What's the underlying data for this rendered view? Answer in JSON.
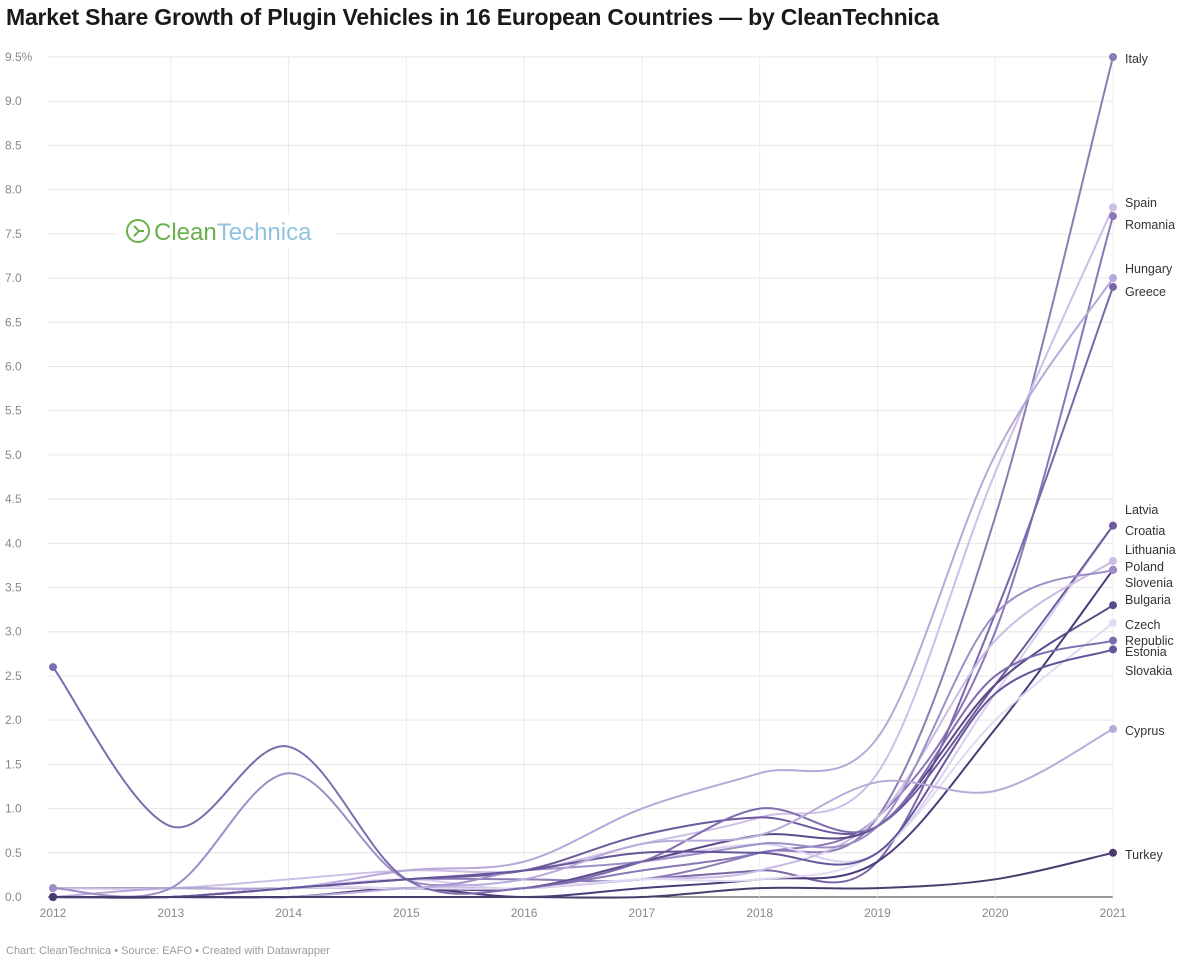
{
  "title": "Market Share Growth of Plugin Vehicles in 16 European Countries — by CleanTechnica",
  "footer": "Chart: CleanTechnica • Source: EAFO • Created with Datawrapper",
  "logo_text": {
    "part1": "Clean",
    "part2": "Technica"
  },
  "chart_data": {
    "type": "line",
    "title": "Market Share Growth of Plugin Vehicles in 16 European Countries — by CleanTechnica",
    "xlabel": "",
    "ylabel": "",
    "x": [
      2012,
      2013,
      2014,
      2015,
      2016,
      2017,
      2018,
      2019,
      2020,
      2021
    ],
    "ylim": [
      0,
      9.5
    ],
    "yticks": [
      "0.0",
      "0.5",
      "1.0",
      "1.5",
      "2.0",
      "2.5",
      "3.0",
      "3.5",
      "4.0",
      "4.5",
      "5.0",
      "5.5",
      "6.0",
      "6.5",
      "7.0",
      "7.5",
      "8.0",
      "8.5",
      "9.0",
      "9.5%"
    ],
    "grid": true,
    "legend": "direct-labels-right",
    "series": [
      {
        "name": "Italy",
        "color": "#8c7bb5",
        "values": [
          0.1,
          0.1,
          0.1,
          0.2,
          0.2,
          0.2,
          0.5,
          0.9,
          4.3,
          9.5
        ]
      },
      {
        "name": "Spain",
        "color": "#cdbfe6",
        "values": [
          0.1,
          0.1,
          0.2,
          0.3,
          0.3,
          0.6,
          0.9,
          1.4,
          4.8,
          7.8
        ]
      },
      {
        "name": "Romania",
        "color": "#8a77b8",
        "values": [
          0,
          0,
          0.1,
          0.1,
          0.1,
          0.3,
          0.5,
          0.9,
          3.0,
          7.7
        ]
      },
      {
        "name": "Hungary",
        "color": "#b6a8d8",
        "values": [
          0,
          0.1,
          0.1,
          0.3,
          0.4,
          1.0,
          1.4,
          1.8,
          5.0,
          7.0
        ]
      },
      {
        "name": "Greece",
        "color": "#7a67a8",
        "values": [
          0,
          0,
          0,
          0.1,
          0.1,
          0.2,
          0.3,
          0.4,
          3.2,
          6.9
        ]
      },
      {
        "name": "Latvia",
        "color": "#d9cfee",
        "values": [
          0,
          0,
          0.1,
          0.2,
          0.1,
          0.4,
          0.6,
          0.5,
          2.3,
          4.2
        ]
      },
      {
        "name": "Croatia",
        "color": "#6c5a9c",
        "values": [
          0,
          0,
          0.1,
          0.2,
          0.3,
          0.7,
          0.9,
          0.8,
          2.4,
          4.2
        ]
      },
      {
        "name": "Lithuania",
        "color": "#c9bde3",
        "values": [
          0,
          0,
          0,
          0.1,
          0.1,
          0.2,
          0.3,
          0.9,
          2.9,
          3.8
        ]
      },
      {
        "name": "Poland",
        "color": "#4b3b78",
        "values": [
          0,
          0,
          0,
          0.1,
          0,
          0.1,
          0.2,
          0.4,
          1.9,
          3.7
        ]
      },
      {
        "name": "Slovenia",
        "color": "#9d8fc6",
        "values": [
          0.1,
          0.1,
          1.4,
          0.2,
          0.3,
          0.4,
          0.6,
          0.8,
          3.2,
          3.7
        ]
      },
      {
        "name": "Bulgaria",
        "color": "#5a4a88",
        "values": [
          0,
          0,
          0.1,
          0.1,
          0.1,
          0.4,
          0.7,
          0.8,
          2.4,
          3.3
        ]
      },
      {
        "name": "Czech Republic",
        "color": "#e2daf2",
        "values": [
          0,
          0,
          0.1,
          0.1,
          0.1,
          0.2,
          0.2,
          0.5,
          2.0,
          3.1
        ]
      },
      {
        "name": "Estonia",
        "color": "#7d6cae",
        "values": [
          2.6,
          0.8,
          1.7,
          0.2,
          0.1,
          0.4,
          1.0,
          0.8,
          2.5,
          2.9
        ]
      },
      {
        "name": "Slovakia",
        "color": "#65559a",
        "values": [
          0,
          0,
          0.1,
          0.2,
          0.3,
          0.5,
          0.5,
          0.5,
          2.3,
          2.8
        ]
      },
      {
        "name": "Cyprus",
        "color": "#b8abd9",
        "values": [
          0,
          0,
          0,
          0.1,
          0.2,
          0.6,
          0.7,
          1.3,
          1.2,
          1.9
        ]
      },
      {
        "name": "Turkey",
        "color": "#4a3d6e",
        "values": [
          0,
          0,
          0,
          0,
          0,
          0,
          0.1,
          0.1,
          0.2,
          0.5
        ]
      }
    ]
  }
}
